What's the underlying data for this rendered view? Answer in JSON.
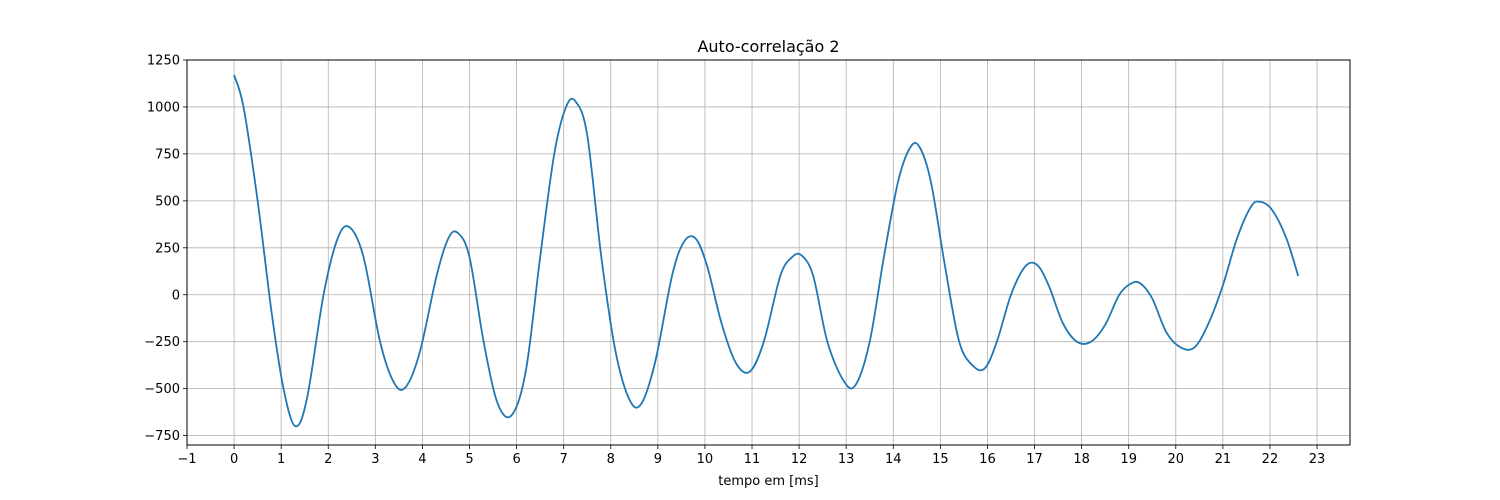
{
  "chart_data": {
    "type": "line",
    "title": "Auto-correlação 2",
    "xlabel": "tempo em [ms]",
    "ylabel": "",
    "xlim": [
      -1,
      23.7
    ],
    "ylim": [
      -800,
      1250
    ],
    "xticks": [
      -1,
      0,
      1,
      2,
      3,
      4,
      5,
      6,
      7,
      8,
      9,
      10,
      11,
      12,
      13,
      14,
      15,
      16,
      17,
      18,
      19,
      20,
      21,
      22,
      23
    ],
    "xtick_labels": [
      "−1",
      "0",
      "1",
      "2",
      "3",
      "4",
      "5",
      "6",
      "7",
      "8",
      "9",
      "10",
      "11",
      "12",
      "13",
      "14",
      "15",
      "16",
      "17",
      "18",
      "19",
      "20",
      "21",
      "22",
      "23"
    ],
    "yticks": [
      -750,
      -500,
      -250,
      0,
      250,
      500,
      750,
      1000,
      1250
    ],
    "ytick_labels": [
      "−750",
      "−500",
      "−250",
      "0",
      "250",
      "500",
      "750",
      "1000",
      "1250"
    ],
    "grid": true,
    "series": [
      {
        "name": "",
        "color": "#1f77b4",
        "x": [
          0,
          0.2,
          0.5,
          0.8,
          1.05,
          1.3,
          1.55,
          1.9,
          2.2,
          2.45,
          2.75,
          3.1,
          3.4,
          3.65,
          3.95,
          4.3,
          4.55,
          4.75,
          5.0,
          5.3,
          5.6,
          5.9,
          6.2,
          6.5,
          6.8,
          7.05,
          7.25,
          7.5,
          7.8,
          8.1,
          8.4,
          8.65,
          8.95,
          9.3,
          9.55,
          9.8,
          10.05,
          10.35,
          10.65,
          10.95,
          11.25,
          11.6,
          11.85,
          12.05,
          12.3,
          12.6,
          12.95,
          13.2,
          13.5,
          13.8,
          14.1,
          14.35,
          14.55,
          14.8,
          15.1,
          15.4,
          15.7,
          15.95,
          16.2,
          16.5,
          16.8,
          17.05,
          17.3,
          17.6,
          17.9,
          18.2,
          18.5,
          18.8,
          19.05,
          19.25,
          19.5,
          19.8,
          20.1,
          20.4,
          20.7,
          21.0,
          21.3,
          21.6,
          21.8,
          22.05,
          22.35,
          22.6
        ],
        "y": [
          1170,
          1000,
          500,
          -100,
          -500,
          -700,
          -550,
          0,
          300,
          360,
          200,
          -250,
          -470,
          -490,
          -300,
          100,
          300,
          330,
          200,
          -250,
          -580,
          -640,
          -400,
          200,
          750,
          1000,
          1030,
          850,
          200,
          -300,
          -560,
          -580,
          -350,
          100,
          280,
          300,
          150,
          -150,
          -360,
          -410,
          -250,
          100,
          200,
          210,
          100,
          -250,
          -460,
          -480,
          -250,
          200,
          600,
          780,
          790,
          600,
          150,
          -250,
          -380,
          -390,
          -250,
          0,
          150,
          160,
          50,
          -150,
          -250,
          -250,
          -160,
          0,
          60,
          60,
          -20,
          -200,
          -280,
          -280,
          -150,
          50,
          300,
          470,
          495,
          450,
          300,
          100
        ]
      }
    ]
  }
}
